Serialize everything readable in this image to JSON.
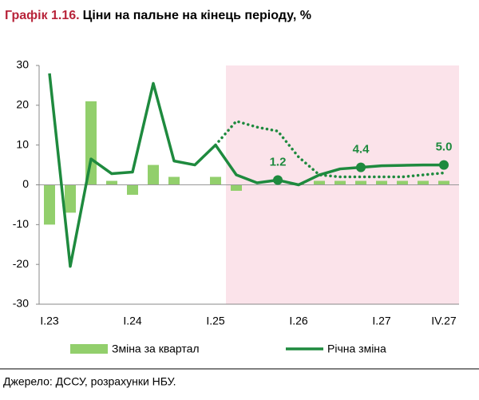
{
  "chart_data": {
    "type": "bar_line",
    "figure_label": "Графік 1.16.",
    "title": "Ціни на пальне на кінець періоду, %",
    "source": "Джерело: ДССУ, розрахунки НБУ.",
    "categories": [
      "I.23",
      null,
      null,
      null,
      "I.24",
      null,
      null,
      null,
      "I.25",
      null,
      null,
      null,
      "I.26",
      null,
      null,
      null,
      "I.27",
      null,
      null,
      "IV.27"
    ],
    "ylim": [
      -30,
      30
    ],
    "yticks": [
      -30,
      -20,
      -10,
      0,
      10,
      20,
      30
    ],
    "series": [
      {
        "name": "Зміна за квартал",
        "kind": "bar",
        "color": "#92cf6c",
        "values": [
          -10,
          -7,
          21,
          1,
          -2.5,
          5,
          2,
          0,
          2,
          -1.5,
          0,
          0,
          0.3,
          1,
          1,
          1,
          1,
          1,
          1,
          1
        ]
      },
      {
        "name": "Річна зміна",
        "kind": "line",
        "color": "#1e8a3e",
        "values": [
          28,
          -20.5,
          6.5,
          2.8,
          3.2,
          25.5,
          6,
          5,
          10,
          2.5,
          0.5,
          1.2,
          0,
          2.5,
          4,
          4.4,
          4.8,
          4.9,
          5,
          5
        ],
        "value_labels": [
          null,
          null,
          null,
          null,
          null,
          null,
          null,
          null,
          null,
          null,
          null,
          "1.2",
          null,
          null,
          null,
          "4.4",
          null,
          null,
          null,
          "5.0"
        ]
      },
      {
        "kind": "line",
        "style": "dotted",
        "color": "#1e8a3e",
        "values": [
          null,
          null,
          null,
          null,
          null,
          null,
          null,
          null,
          10,
          16,
          14.5,
          13.5,
          7,
          2.5,
          2,
          2,
          2,
          2,
          2.5,
          3
        ]
      }
    ]
  }
}
